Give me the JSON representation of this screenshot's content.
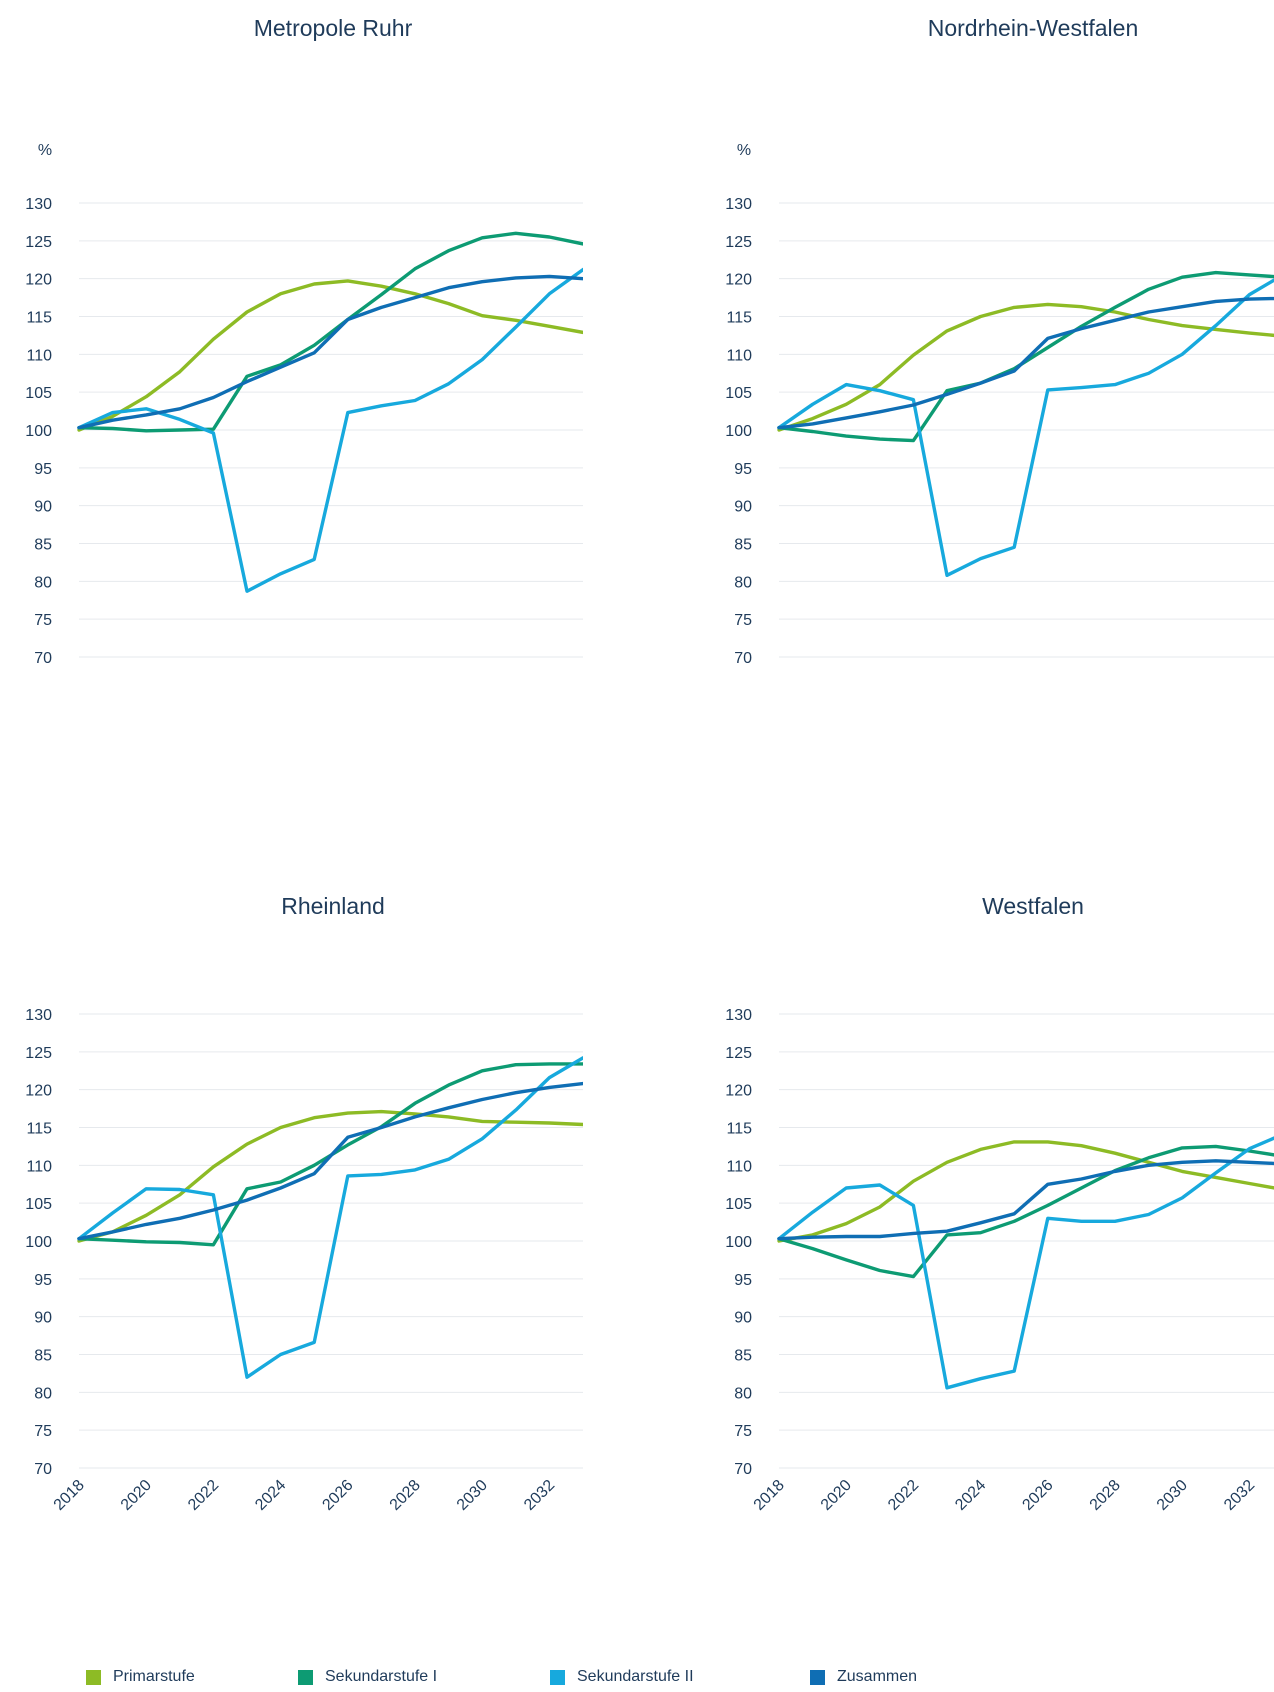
{
  "chart_data": [
    {
      "type": "line",
      "title": "Metropole Ruhr",
      "ylabel": "%",
      "ylim": [
        70,
        130
      ],
      "y_ticks": [
        "70",
        "75",
        "80",
        "85",
        "90",
        "95",
        "100",
        "105",
        "110",
        "115",
        "120",
        "125",
        "130"
      ],
      "x": [
        2018,
        2019,
        2020,
        2021,
        2022,
        2023,
        2024,
        2025,
        2026,
        2027,
        2028,
        2029,
        2030,
        2031,
        2032,
        2033
      ],
      "x_ticks": [],
      "series": [
        {
          "name": "Primarstufe",
          "values": [
            100,
            101.8,
            104.4,
            107.7,
            112.0,
            115.6,
            118.0,
            119.3,
            119.7,
            119.0,
            118.0,
            116.7,
            115.1,
            114.5,
            113.7,
            112.9
          ]
        },
        {
          "name": "Sekundarstufe I",
          "values": [
            100.3,
            100.2,
            99.9,
            100.0,
            100.1,
            107.1,
            108.6,
            111.2,
            114.6,
            117.9,
            121.3,
            123.7,
            125.4,
            126.0,
            125.5,
            124.6
          ]
        },
        {
          "name": "Sekundarstufe II",
          "values": [
            100.3,
            102.3,
            102.8,
            101.4,
            99.6,
            78.7,
            81.0,
            82.9,
            102.3,
            103.2,
            103.9,
            106.1,
            109.3,
            113.6,
            118.0,
            121.2
          ]
        },
        {
          "name": "Zusammen",
          "values": [
            100.3,
            101.3,
            102.0,
            102.8,
            104.3,
            106.4,
            108.3,
            110.2,
            114.6,
            116.2,
            117.5,
            118.8,
            119.6,
            120.1,
            120.3,
            120.0
          ]
        }
      ]
    },
    {
      "type": "line",
      "title": "Nordrhein-Westfalen",
      "ylabel": "%",
      "ylim": [
        70,
        130
      ],
      "y_ticks": [
        "70",
        "75",
        "80",
        "85",
        "90",
        "95",
        "100",
        "105",
        "110",
        "115",
        "120",
        "125",
        "130"
      ],
      "x": [
        2018,
        2019,
        2020,
        2021,
        2022,
        2023,
        2024,
        2025,
        2026,
        2027,
        2028,
        2029,
        2030,
        2031,
        2032,
        2033
      ],
      "x_ticks": [],
      "series": [
        {
          "name": "Primarstufe",
          "values": [
            100,
            101.5,
            103.4,
            106.0,
            109.9,
            113.1,
            115.0,
            116.2,
            116.6,
            116.3,
            115.6,
            114.6,
            113.8,
            113.3,
            112.8,
            112.4
          ]
        },
        {
          "name": "Sekundarstufe I",
          "values": [
            100.3,
            99.8,
            99.2,
            98.8,
            98.6,
            105.2,
            106.2,
            108.1,
            110.9,
            113.7,
            116.2,
            118.6,
            120.2,
            120.8,
            120.5,
            120.2
          ]
        },
        {
          "name": "Sekundarstufe II",
          "values": [
            100.3,
            103.4,
            106.0,
            105.2,
            104.0,
            80.8,
            83.0,
            84.5,
            105.3,
            105.6,
            106.0,
            107.5,
            110.0,
            113.8,
            117.9,
            120.5
          ]
        },
        {
          "name": "Zusammen",
          "values": [
            100.3,
            100.8,
            101.6,
            102.4,
            103.3,
            104.7,
            106.2,
            107.8,
            112.1,
            113.4,
            114.5,
            115.6,
            116.3,
            117.0,
            117.3,
            117.4
          ]
        }
      ]
    },
    {
      "type": "line",
      "title": "Rheinland",
      "ylabel": "",
      "ylim": [
        70,
        130
      ],
      "y_ticks": [
        "70",
        "75",
        "80",
        "85",
        "90",
        "95",
        "100",
        "105",
        "110",
        "115",
        "120",
        "125",
        "130"
      ],
      "x": [
        2018,
        2019,
        2020,
        2021,
        2022,
        2023,
        2024,
        2025,
        2026,
        2027,
        2028,
        2029,
        2030,
        2031,
        2032,
        2033
      ],
      "x_ticks": [
        "2018",
        "2020",
        "2022",
        "2024",
        "2026",
        "2028",
        "2030",
        "2032"
      ],
      "series": [
        {
          "name": "Primarstufe",
          "values": [
            100,
            101.2,
            103.4,
            106.1,
            109.8,
            112.8,
            115.0,
            116.3,
            116.9,
            117.1,
            116.8,
            116.4,
            115.8,
            115.7,
            115.6,
            115.4
          ]
        },
        {
          "name": "Sekundarstufe I",
          "values": [
            100.3,
            100.1,
            99.9,
            99.8,
            99.5,
            106.9,
            107.8,
            110.0,
            112.7,
            115.1,
            118.2,
            120.6,
            122.5,
            123.3,
            123.4,
            123.4
          ]
        },
        {
          "name": "Sekundarstufe II",
          "values": [
            100.3,
            103.7,
            106.9,
            106.8,
            106.1,
            82.0,
            85.0,
            86.6,
            108.6,
            108.8,
            109.4,
            110.8,
            113.5,
            117.3,
            121.6,
            124.2
          ]
        },
        {
          "name": "Zusammen",
          "values": [
            100.3,
            101.2,
            102.2,
            103.0,
            104.1,
            105.4,
            107.0,
            108.9,
            113.7,
            115.0,
            116.4,
            117.6,
            118.7,
            119.6,
            120.3,
            120.8
          ]
        }
      ]
    },
    {
      "type": "line",
      "title": "Westfalen",
      "ylabel": "",
      "ylim": [
        70,
        130
      ],
      "y_ticks": [
        "70",
        "75",
        "80",
        "85",
        "90",
        "95",
        "100",
        "105",
        "110",
        "115",
        "120",
        "125",
        "130"
      ],
      "x": [
        2018,
        2019,
        2020,
        2021,
        2022,
        2023,
        2024,
        2025,
        2026,
        2027,
        2028,
        2029,
        2030,
        2031,
        2032,
        2033
      ],
      "x_ticks": [
        "2018",
        "2020",
        "2022",
        "2024",
        "2026",
        "2028",
        "2030",
        "2032"
      ],
      "series": [
        {
          "name": "Primarstufe",
          "values": [
            100,
            100.8,
            102.3,
            104.5,
            107.9,
            110.4,
            112.1,
            113.1,
            113.1,
            112.6,
            111.6,
            110.4,
            109.2,
            108.4,
            107.6,
            106.8
          ]
        },
        {
          "name": "Sekundarstufe I",
          "values": [
            100.3,
            99.0,
            97.5,
            96.1,
            95.3,
            100.8,
            101.1,
            102.6,
            104.7,
            107.0,
            109.3,
            111.0,
            112.3,
            112.5,
            111.9,
            111.2
          ]
        },
        {
          "name": "Sekundarstufe II",
          "values": [
            100.3,
            103.8,
            107.0,
            107.4,
            104.7,
            80.6,
            81.8,
            82.8,
            103.0,
            102.6,
            102.6,
            103.5,
            105.7,
            109.0,
            112.2,
            114.1
          ]
        },
        {
          "name": "Zusammen",
          "values": [
            100.3,
            100.5,
            100.6,
            100.6,
            101.0,
            101.3,
            102.4,
            103.6,
            107.5,
            108.2,
            109.2,
            110.0,
            110.4,
            110.6,
            110.4,
            110.2
          ]
        }
      ]
    }
  ],
  "legend": [
    {
      "label": "Primarstufe",
      "color": "#8dbb25"
    },
    {
      "label": "Sekundarstufe I",
      "color": "#0d9b73"
    },
    {
      "label": "Sekundarstufe II",
      "color": "#17a9dd"
    },
    {
      "label": "Zusammen",
      "color": "#0f6eb4"
    }
  ],
  "colors": [
    "#8dbb25",
    "#0d9b73",
    "#17a9dd",
    "#0f6eb4"
  ]
}
